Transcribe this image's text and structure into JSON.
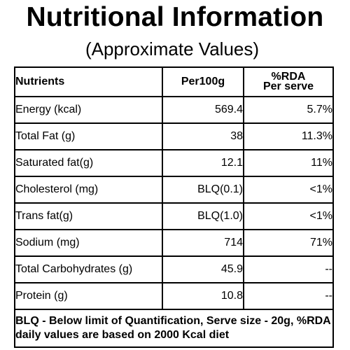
{
  "title": "Nutritional Information",
  "subtitle": "(Approximate Values)",
  "table": {
    "headers": {
      "nutrients": "Nutrients",
      "per100g": "Per100g",
      "rda_line1": "%RDA",
      "rda_line2": "Per serve"
    },
    "rows": [
      {
        "nutrient": "Energy (kcal)",
        "per100g": "569.4",
        "rda": "5.7%"
      },
      {
        "nutrient": "Total Fat (g)",
        "per100g": "38",
        "rda": "11.3%"
      },
      {
        "nutrient": "Saturated fat(g)",
        "per100g": "12.1",
        "rda": "11%"
      },
      {
        "nutrient": "Cholesterol (mg)",
        "per100g": "BLQ(0.1)",
        "rda": "<1%"
      },
      {
        "nutrient": "Trans fat(g)",
        "per100g": "BLQ(1.0)",
        "rda": "<1%"
      },
      {
        "nutrient": "Sodium (mg)",
        "per100g": "714",
        "rda": "71%"
      },
      {
        "nutrient": "Total Carbohydrates (g)",
        "per100g": "45.9",
        "rda": "--"
      },
      {
        "nutrient": "Protein (g)",
        "per100g": "10.8",
        "rda": "--"
      }
    ],
    "footnote": "BLQ - Below limit of Quantification, Serve size - 20g, %RDA daily values are based on 2000 Kcal diet"
  }
}
